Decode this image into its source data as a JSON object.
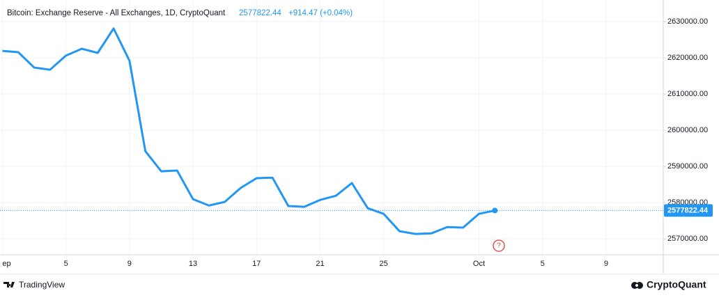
{
  "chart_data": {
    "type": "line",
    "title": "Bitcoin: Exchange Reserve - All Exchanges, 1D, CryptoQuant",
    "last_value": "2577822.44",
    "change": "+914.47 (+0.04%)",
    "x": [
      0,
      1,
      2,
      3,
      4,
      5,
      6,
      7,
      8,
      9,
      10,
      11,
      12,
      13,
      14,
      15,
      16,
      17,
      18,
      19,
      20,
      21,
      22,
      23,
      24,
      25,
      26,
      27,
      28,
      29,
      30,
      31
    ],
    "series": [
      {
        "name": "Exchange Reserve",
        "color": "#2196f3",
        "values": [
          2621900,
          2621540,
          2617300,
          2616700,
          2620600,
          2622500,
          2621350,
          2628100,
          2619200,
          2594200,
          2588650,
          2588850,
          2580950,
          2579200,
          2580200,
          2584050,
          2586750,
          2586900,
          2579050,
          2578850,
          2580750,
          2581900,
          2585400,
          2578450,
          2576900,
          2572100,
          2571350,
          2571500,
          2573250,
          2573100,
          2576907.97,
          2577822.44
        ]
      }
    ],
    "xlim": [
      -0.15,
      41.6
    ],
    "xticks": [
      {
        "value": 0,
        "label": "ep"
      },
      {
        "value": 4,
        "label": "5"
      },
      {
        "value": 8,
        "label": "9"
      },
      {
        "value": 12,
        "label": "13"
      },
      {
        "value": 16,
        "label": "17"
      },
      {
        "value": 20,
        "label": "21"
      },
      {
        "value": 24,
        "label": "25"
      },
      {
        "value": 30,
        "label": "Oct"
      },
      {
        "value": 34,
        "label": "5"
      },
      {
        "value": 38,
        "label": "9"
      }
    ],
    "ylim": [
      2565600,
      2635000
    ],
    "yticks": [
      {
        "value": 2570000,
        "label": "2570000.00"
      },
      {
        "value": 2580000,
        "label": "2580000.00"
      },
      {
        "value": 2590000,
        "label": "2590000.00"
      },
      {
        "value": 2600000,
        "label": "2600000.00"
      },
      {
        "value": 2610000,
        "label": "2610000.00"
      },
      {
        "value": 2620000,
        "label": "2620000.00"
      },
      {
        "value": 2630000,
        "label": "2630000.00"
      }
    ],
    "grid": true
  },
  "footer": {
    "left": "TradingView",
    "right": "CryptoQuant"
  }
}
